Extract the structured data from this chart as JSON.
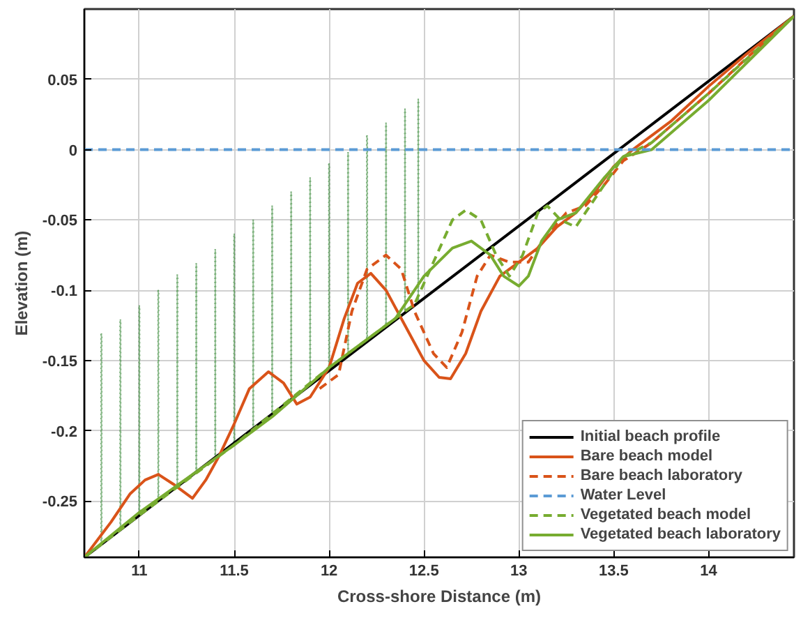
{
  "chart_data": {
    "type": "line",
    "xlabel": "Cross-shore Distance (m)",
    "ylabel": "Elevation (m)",
    "xlim": [
      10.71,
      14.45
    ],
    "ylim": [
      -0.29,
      0.1
    ],
    "xticks": [
      11,
      11.5,
      12,
      12.5,
      13,
      13.5,
      14
    ],
    "yticks": [
      -0.25,
      -0.2,
      -0.15,
      -0.1,
      -0.05,
      0,
      0.05
    ],
    "grid": true,
    "legend": "bottom right",
    "series": [
      {
        "type": "bar",
        "color": "#3a8a3a",
        "line_style": "dotted",
        "x": [
          10.8,
          10.9,
          11.0,
          11.1,
          11.2,
          11.3,
          11.4,
          11.5,
          11.6,
          11.7,
          11.8,
          11.9,
          12.0,
          12.1,
          12.2,
          12.3,
          12.4,
          12.47
        ],
        "base": [
          -0.281,
          -0.27,
          -0.26,
          -0.25,
          -0.24,
          -0.229,
          -0.219,
          -0.209,
          -0.198,
          -0.188,
          -0.178,
          -0.168,
          -0.157,
          -0.147,
          -0.137,
          -0.126,
          -0.116,
          -0.109
        ],
        "values": [
          0.15,
          0.149,
          0.149,
          0.15,
          0.151,
          0.148,
          0.148,
          0.149,
          0.148,
          0.148,
          0.148,
          0.148,
          0.147,
          0.145,
          0.147,
          0.145,
          0.145,
          0.145
        ]
      },
      {
        "name": "Initial beach profile",
        "color": "#000000",
        "line_style": "solid",
        "x": [
          10.71,
          14.45
        ],
        "values": [
          -0.29,
          0.095
        ]
      },
      {
        "name": "Bare beach model",
        "color": "#d95319",
        "line_style": "solid",
        "x": [
          10.71,
          10.85,
          10.95,
          11.03,
          11.1,
          11.18,
          11.28,
          11.35,
          11.42,
          11.5,
          11.58,
          11.68,
          11.76,
          11.83,
          11.9,
          12.0,
          12.08,
          12.15,
          12.22,
          12.3,
          12.4,
          12.5,
          12.58,
          12.64,
          12.72,
          12.8,
          12.9,
          13.0,
          13.1,
          13.2,
          13.3,
          13.4,
          13.5,
          13.6,
          13.8,
          14.0,
          14.2,
          14.45
        ],
        "values": [
          -0.29,
          -0.265,
          -0.245,
          -0.235,
          -0.231,
          -0.238,
          -0.248,
          -0.235,
          -0.218,
          -0.195,
          -0.17,
          -0.158,
          -0.166,
          -0.181,
          -0.176,
          -0.155,
          -0.12,
          -0.095,
          -0.088,
          -0.1,
          -0.125,
          -0.15,
          -0.162,
          -0.163,
          -0.145,
          -0.115,
          -0.09,
          -0.08,
          -0.07,
          -0.055,
          -0.045,
          -0.03,
          -0.012,
          0.0,
          0.02,
          0.045,
          0.068,
          0.095
        ]
      },
      {
        "name": "Bare beach laboratory",
        "color": "#d95319",
        "line_style": "dashed",
        "x": [
          11.95,
          12.05,
          12.12,
          12.2,
          12.3,
          12.38,
          12.45,
          12.55,
          12.62,
          12.7,
          12.78,
          12.85,
          12.95,
          13.05,
          13.15,
          13.25,
          13.35,
          13.45,
          13.55,
          13.7,
          14.0,
          14.2,
          14.45
        ],
        "values": [
          -0.17,
          -0.16,
          -0.115,
          -0.085,
          -0.075,
          -0.085,
          -0.115,
          -0.145,
          -0.155,
          -0.13,
          -0.09,
          -0.075,
          -0.08,
          -0.08,
          -0.06,
          -0.045,
          -0.04,
          -0.025,
          -0.008,
          0.005,
          0.04,
          0.065,
          0.095
        ]
      },
      {
        "name": "Vegetated beach model",
        "color": "#77ac30",
        "line_style": "dashed",
        "x": [
          10.71,
          11.0,
          11.5,
          12.0,
          12.3,
          12.45,
          12.55,
          12.65,
          12.72,
          12.8,
          12.88,
          12.95,
          13.02,
          13.1,
          13.15,
          13.22,
          13.3,
          13.4,
          13.55,
          13.7,
          14.0,
          14.45
        ],
        "values": [
          -0.29,
          -0.26,
          -0.21,
          -0.155,
          -0.125,
          -0.11,
          -0.08,
          -0.05,
          -0.043,
          -0.05,
          -0.075,
          -0.09,
          -0.075,
          -0.045,
          -0.04,
          -0.05,
          -0.055,
          -0.035,
          -0.005,
          0.005,
          0.04,
          0.095
        ]
      },
      {
        "name": "Vegetated beach laboratory",
        "color": "#77ac30",
        "line_style": "solid",
        "x": [
          10.71,
          11.0,
          11.5,
          11.7,
          12.0,
          12.2,
          12.35,
          12.5,
          12.65,
          12.75,
          12.85,
          12.92,
          13.0,
          13.05,
          13.12,
          13.2,
          13.3,
          13.45,
          13.55,
          13.7,
          14.0,
          14.45
        ],
        "values": [
          -0.29,
          -0.258,
          -0.21,
          -0.19,
          -0.155,
          -0.135,
          -0.12,
          -0.09,
          -0.07,
          -0.065,
          -0.075,
          -0.09,
          -0.097,
          -0.09,
          -0.065,
          -0.05,
          -0.045,
          -0.02,
          -0.005,
          0.0,
          0.035,
          0.095
        ]
      }
    ],
    "ref_lines": [
      {
        "axis": "y",
        "value": 0,
        "label": "Water Level",
        "color": "#5b9bd5",
        "line_style": "dashed"
      }
    ]
  }
}
